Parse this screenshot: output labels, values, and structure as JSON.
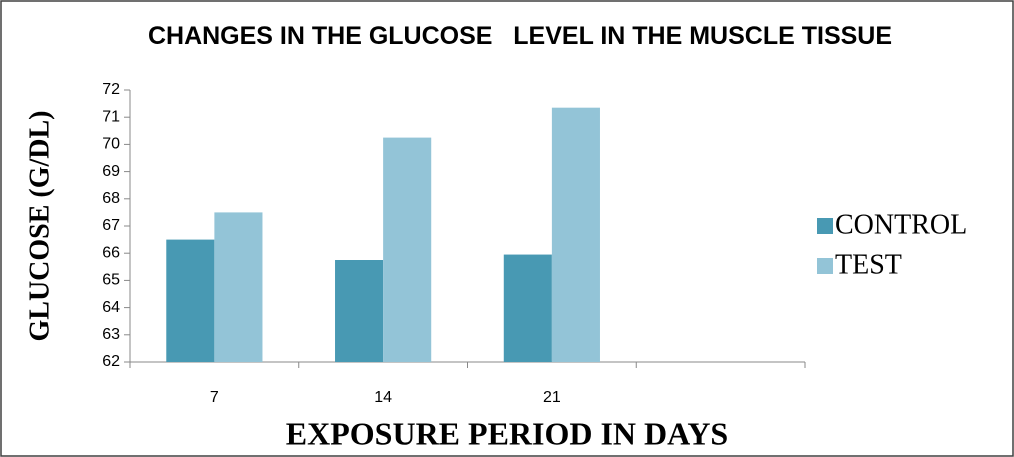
{
  "chart_data": {
    "type": "bar",
    "title": "CHANGES IN THE GLUCOSE   LEVEL IN THE MUSCLE TISSUE",
    "x_label": "EXPOSURE PERIOD IN DAYS",
    "y_label": "GLUCOSE  (G/DL)",
    "categories": [
      "7",
      "14",
      "21",
      null
    ],
    "series": [
      {
        "name": "CONTROL",
        "color": "#4899b3",
        "values": [
          66.5,
          65.75,
          65.95,
          null
        ]
      },
      {
        "name": "TEST",
        "color": "#93c4d7",
        "values": [
          67.5,
          70.25,
          71.35,
          null
        ]
      }
    ],
    "ylim": [
      62,
      72
    ],
    "yticks": [
      62,
      63,
      64,
      65,
      66,
      67,
      68,
      69,
      70,
      71,
      72
    ],
    "legend": "right",
    "grid": false
  }
}
